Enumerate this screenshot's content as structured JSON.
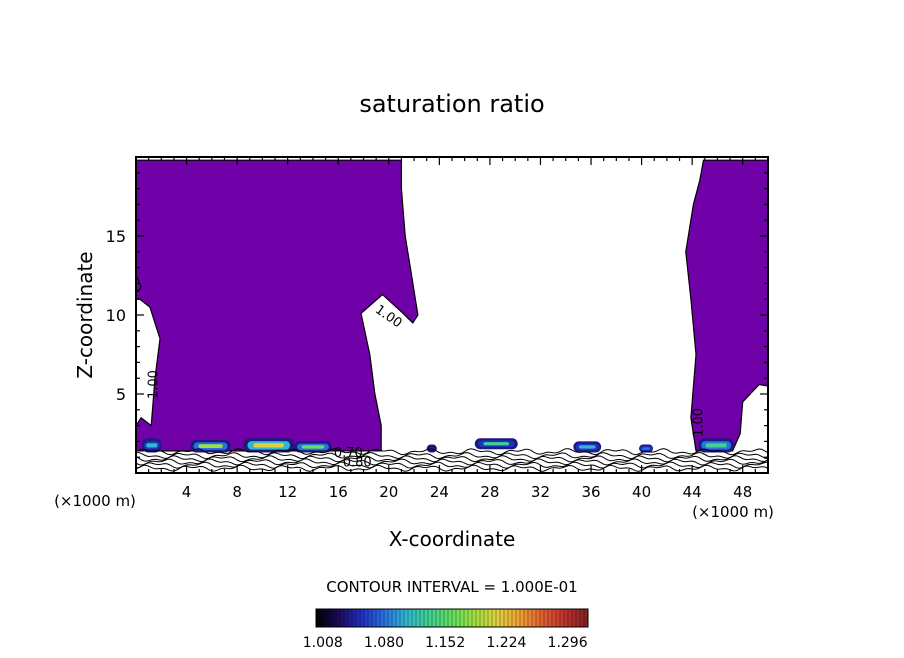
{
  "chart_data": {
    "type": "heatmap",
    "title": "saturation ratio",
    "xlabel": "X-coordinate",
    "ylabel": "Z-coordinate",
    "x_unit_left": "(×1000 m)",
    "x_unit_right": "(×1000 m)",
    "xlim": [
      0,
      50
    ],
    "ylim": [
      0,
      20
    ],
    "x_ticks": [
      4,
      8,
      12,
      16,
      20,
      24,
      28,
      32,
      36,
      40,
      44,
      48
    ],
    "y_ticks": [
      5,
      10,
      15
    ],
    "contour_interval_text": "CONTOUR INTERVAL = 1.000E-01",
    "colorbar": {
      "tick_labels": [
        "1.008",
        "1.080",
        "1.152",
        "1.224",
        "1.296"
      ],
      "range": [
        1.0,
        1.32
      ],
      "colors": [
        "#000000",
        "#1a0a5a",
        "#2030c0",
        "#2a70e0",
        "#30b8d0",
        "#40d090",
        "#60e060",
        "#a0e040",
        "#e0d040",
        "#f0a030",
        "#e06030",
        "#c03030",
        "#802020"
      ]
    },
    "fill_color": "#7000a8",
    "contour_labels": [
      {
        "text": "1.00",
        "x": 19.8,
        "z": 9.7
      },
      {
        "text": "1.00",
        "x": 1.7,
        "z": 5.6
      },
      {
        "text": "1.00",
        "x": 44.8,
        "z": 3.2
      },
      {
        "text": "0.80",
        "x": 17.5,
        "z": 0.4
      },
      {
        "text": "0.70",
        "x": 16.8,
        "z": 1.0
      }
    ],
    "regions": {
      "left_column": [
        [
          0,
          19.8
        ],
        [
          21,
          19.8
        ],
        [
          21,
          18
        ],
        [
          21.3,
          15
        ],
        [
          21.8,
          12.5
        ],
        [
          22.3,
          10
        ],
        [
          21.9,
          9.5
        ],
        [
          21.0,
          10.2
        ],
        [
          19.5,
          11.3
        ],
        [
          17.8,
          10.1
        ],
        [
          18.5,
          7.5
        ],
        [
          18.9,
          5
        ],
        [
          19.4,
          3
        ],
        [
          19.4,
          1.4
        ],
        [
          0,
          1.4
        ],
        [
          0,
          3
        ],
        [
          0.4,
          3.5
        ],
        [
          1.2,
          3.0
        ],
        [
          1.5,
          6
        ],
        [
          1.9,
          8.5
        ],
        [
          1.1,
          10.5
        ],
        [
          0.3,
          11
        ],
        [
          0,
          11
        ]
      ],
      "left_strip": [
        [
          0,
          12.5
        ],
        [
          0.4,
          11.8
        ],
        [
          0.2,
          11.5
        ],
        [
          0,
          11.6
        ]
      ],
      "right_column": [
        [
          44.9,
          19.8
        ],
        [
          50,
          19.8
        ],
        [
          50,
          5.5
        ],
        [
          49.3,
          5.6
        ],
        [
          48.0,
          4.5
        ],
        [
          47.8,
          2.5
        ],
        [
          47.2,
          1.4
        ],
        [
          44.3,
          1.4
        ],
        [
          43.9,
          3.5
        ],
        [
          44.3,
          7.5
        ],
        [
          43.9,
          11
        ],
        [
          43.5,
          14
        ],
        [
          44.1,
          17
        ],
        [
          44.6,
          18.5
        ]
      ]
    },
    "patches": [
      {
        "x": [
          0.5,
          2.0
        ],
        "z": [
          1.3,
          2.2
        ],
        "level": 0.35
      },
      {
        "x": [
          4.3,
          7.5
        ],
        "z": [
          1.3,
          2.1
        ],
        "level": 0.55
      },
      {
        "x": [
          8.5,
          12.5
        ],
        "z": [
          1.3,
          2.2
        ],
        "level": 0.65
      },
      {
        "x": [
          12.5,
          15.5
        ],
        "z": [
          1.3,
          2.0
        ],
        "level": 0.5
      },
      {
        "x": [
          23.0,
          23.8
        ],
        "z": [
          1.3,
          1.8
        ],
        "level": 0.2
      },
      {
        "x": [
          26.8,
          30.2
        ],
        "z": [
          1.5,
          2.2
        ],
        "level": 0.4
      },
      {
        "x": [
          34.6,
          36.8
        ],
        "z": [
          1.3,
          2.0
        ],
        "level": 0.35
      },
      {
        "x": [
          39.8,
          40.9
        ],
        "z": [
          1.3,
          1.8
        ],
        "level": 0.25
      },
      {
        "x": [
          44.5,
          47.3
        ],
        "z": [
          1.3,
          2.2
        ],
        "level": 0.45
      }
    ]
  }
}
